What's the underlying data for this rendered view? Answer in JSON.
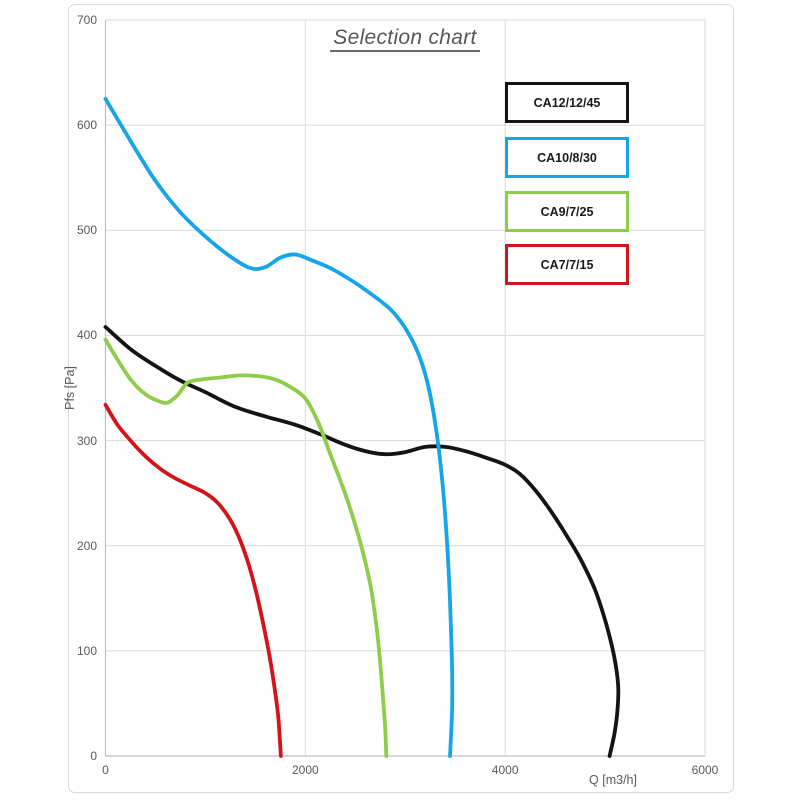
{
  "title": "Selection chart",
  "legend": {
    "items": [
      {
        "label": "CA12/12/45"
      },
      {
        "label": "CA10/8/30"
      },
      {
        "label": "CA9/7/25"
      },
      {
        "label": "CA7/7/15"
      }
    ]
  },
  "colors": {
    "grid": "#dadada",
    "axis": "#bfbfbf",
    "tick_text": "#595959",
    "title_text": "#575757",
    "black_series": "#141414",
    "blue_series": "#16a5e8",
    "green_series": "#8ecc49",
    "red_series": "#d3151b"
  },
  "chart_data": {
    "type": "line",
    "title": "Selection chart",
    "xlabel": "Q [m3/h]",
    "ylabel": "Pfs [Pa]",
    "xlim": [
      0,
      6000
    ],
    "ylim": [
      0,
      700
    ],
    "x_ticks": [
      0,
      2000,
      4000,
      6000
    ],
    "y_ticks": [
      0,
      100,
      200,
      300,
      400,
      500,
      600,
      700
    ],
    "grid": true,
    "legend_position": "inside-top-right",
    "series": [
      {
        "name": "CA12/12/45",
        "color": "#141414",
        "points": [
          [
            0,
            408
          ],
          [
            250,
            387
          ],
          [
            500,
            371
          ],
          [
            750,
            357
          ],
          [
            1000,
            346
          ],
          [
            1300,
            332
          ],
          [
            1600,
            323
          ],
          [
            1900,
            315
          ],
          [
            2150,
            306
          ],
          [
            2400,
            296
          ],
          [
            2600,
            290
          ],
          [
            2800,
            287
          ],
          [
            3000,
            289
          ],
          [
            3200,
            294
          ],
          [
            3400,
            294
          ],
          [
            3600,
            290
          ],
          [
            3800,
            284
          ],
          [
            4000,
            277
          ],
          [
            4150,
            268
          ],
          [
            4300,
            253
          ],
          [
            4450,
            234
          ],
          [
            4600,
            212
          ],
          [
            4750,
            188
          ],
          [
            4900,
            158
          ],
          [
            5010,
            126
          ],
          [
            5090,
            95
          ],
          [
            5130,
            68
          ],
          [
            5125,
            45
          ],
          [
            5095,
            22
          ],
          [
            5045,
            0
          ]
        ]
      },
      {
        "name": "CA10/8/30",
        "color": "#16a5e8",
        "points": [
          [
            0,
            625
          ],
          [
            250,
            585
          ],
          [
            500,
            547
          ],
          [
            750,
            517
          ],
          [
            1000,
            494
          ],
          [
            1250,
            475
          ],
          [
            1450,
            464
          ],
          [
            1600,
            465
          ],
          [
            1750,
            474
          ],
          [
            1900,
            477
          ],
          [
            2050,
            472
          ],
          [
            2250,
            464
          ],
          [
            2450,
            453
          ],
          [
            2650,
            440
          ],
          [
            2850,
            425
          ],
          [
            3000,
            407
          ],
          [
            3130,
            383
          ],
          [
            3230,
            352
          ],
          [
            3310,
            310
          ],
          [
            3370,
            262
          ],
          [
            3410,
            215
          ],
          [
            3440,
            165
          ],
          [
            3460,
            115
          ],
          [
            3470,
            75
          ],
          [
            3468,
            40
          ],
          [
            3448,
            0
          ]
        ]
      },
      {
        "name": "CA9/7/25",
        "color": "#8ecc49",
        "points": [
          [
            0,
            396
          ],
          [
            120,
            377
          ],
          [
            260,
            357
          ],
          [
            400,
            344
          ],
          [
            520,
            338
          ],
          [
            620,
            336
          ],
          [
            720,
            343
          ],
          [
            820,
            355
          ],
          [
            950,
            358
          ],
          [
            1150,
            360
          ],
          [
            1350,
            362
          ],
          [
            1550,
            361
          ],
          [
            1700,
            358
          ],
          [
            1850,
            351
          ],
          [
            2000,
            340
          ],
          [
            2130,
            317
          ],
          [
            2250,
            287
          ],
          [
            2370,
            257
          ],
          [
            2470,
            229
          ],
          [
            2570,
            196
          ],
          [
            2660,
            158
          ],
          [
            2730,
            108
          ],
          [
            2775,
            58
          ],
          [
            2800,
            25
          ],
          [
            2810,
            0
          ]
        ]
      },
      {
        "name": "CA7/7/15",
        "color": "#d3151b",
        "points": [
          [
            0,
            334
          ],
          [
            120,
            315
          ],
          [
            260,
            299
          ],
          [
            400,
            285
          ],
          [
            550,
            273
          ],
          [
            700,
            264
          ],
          [
            850,
            257
          ],
          [
            1000,
            250
          ],
          [
            1120,
            241
          ],
          [
            1240,
            226
          ],
          [
            1340,
            207
          ],
          [
            1430,
            183
          ],
          [
            1510,
            155
          ],
          [
            1580,
            125
          ],
          [
            1640,
            96
          ],
          [
            1690,
            66
          ],
          [
            1730,
            36
          ],
          [
            1755,
            0
          ]
        ]
      }
    ]
  }
}
